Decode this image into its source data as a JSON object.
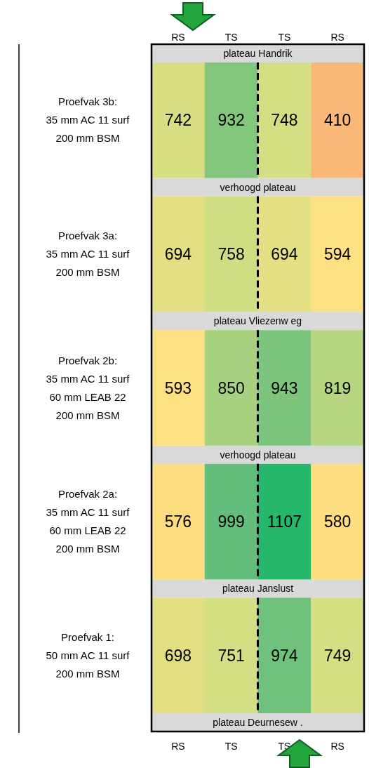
{
  "chart_data": {
    "type": "heatmap",
    "categories": [
      "RS",
      "TS",
      "TS",
      "RS"
    ],
    "y_categories": [
      "Proefvak 3b:\n35 mm AC 11 surf\n200 mm BSM",
      "Proefvak 3a:\n35 mm AC 11 surf\n200 mm BSM",
      "Proefvak 2b:\n35 mm AC 11 surf\n60 mm LEAB 22\n200 mm BSM",
      "Proefvak 2a:\n35 mm AC 11 surf\n60 mm LEAB 22\n200 mm BSM",
      "Proefvak 1:\n50 mm AC 11 surf\n200 mm BSM"
    ],
    "cells": [
      [
        742,
        932,
        748,
        410
      ],
      [
        694,
        758,
        694,
        594
      ],
      [
        593,
        850,
        943,
        819
      ],
      [
        576,
        999,
        1107,
        580
      ],
      [
        698,
        751,
        974,
        749
      ]
    ],
    "data_labels": true,
    "annotations": [
      "plateau Handrik",
      "verhoogd plateau",
      "plateau Vliezenw eg",
      "verhoogd plateau",
      "plateau Janslust",
      "plateau Deurnesew ."
    ]
  }
}
